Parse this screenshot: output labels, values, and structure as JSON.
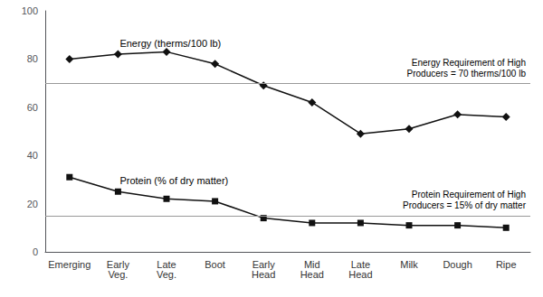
{
  "chart_data": {
    "type": "line",
    "categories": [
      "Emerging",
      "Early\nVeg.",
      "Late\nVeg.",
      "Boot",
      "Early\nHead",
      "Mid\nHead",
      "Late\nHead",
      "Milk",
      "Dough",
      "Ripe"
    ],
    "series": [
      {
        "name": "Energy (therms/100 lb)",
        "color": "#111111",
        "marker": "diamond",
        "values": [
          80,
          82,
          83,
          78,
          69,
          62,
          49,
          51,
          57,
          56
        ]
      },
      {
        "name": "Protein (% of dry matter)",
        "color": "#111111",
        "marker": "square",
        "values": [
          31,
          25,
          22,
          21,
          14,
          12,
          12,
          11,
          11,
          10
        ]
      }
    ],
    "reference_lines": [
      {
        "value": 70,
        "label": "Energy Requirement of High\nProducers = 70 therms/100 lb",
        "color": "#999999"
      },
      {
        "value": 15,
        "label": "Protein Requirement of High\nProducers = 15% of dry matter",
        "color": "#999999"
      }
    ],
    "ylim": [
      0,
      100
    ],
    "yticks": [
      0,
      20,
      40,
      60,
      80,
      100
    ],
    "grid": false
  }
}
